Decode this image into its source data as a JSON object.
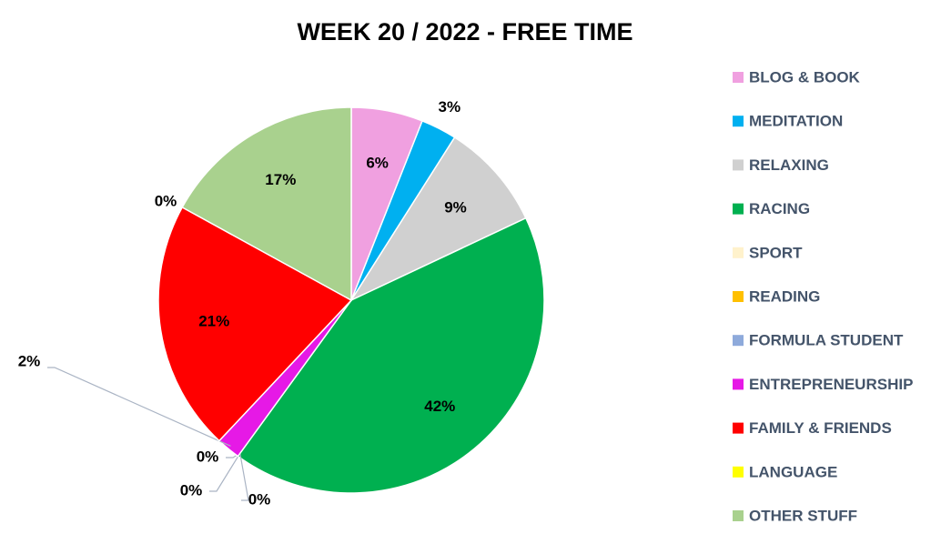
{
  "chart_data": {
    "type": "pie",
    "title": "WEEK 20 / 2022 - FREE TIME",
    "categories": [
      "BLOG & BOOK",
      "MEDITATION",
      "RELAXING",
      "RACING",
      "SPORT",
      "READING",
      "FORMULA STUDENT",
      "ENTREPRENEURSHIP",
      "FAMILY & FRIENDS",
      "LANGUAGE",
      "OTHER STUFF"
    ],
    "values": [
      6,
      3,
      9,
      42,
      0,
      0,
      0,
      2,
      21,
      0,
      17
    ],
    "value_labels": [
      "6%",
      "3%",
      "9%",
      "42%",
      "0%",
      "0%",
      "0%",
      "2%",
      "21%",
      "0%",
      "17%"
    ],
    "colors": [
      "#f0a0e0",
      "#00b0f0",
      "#d0d0d0",
      "#00b050",
      "#fff2cc",
      "#ffc000",
      "#8eaadb",
      "#e619e6",
      "#ff0000",
      "#ffff00",
      "#a9d18e"
    ],
    "legend": "right"
  }
}
